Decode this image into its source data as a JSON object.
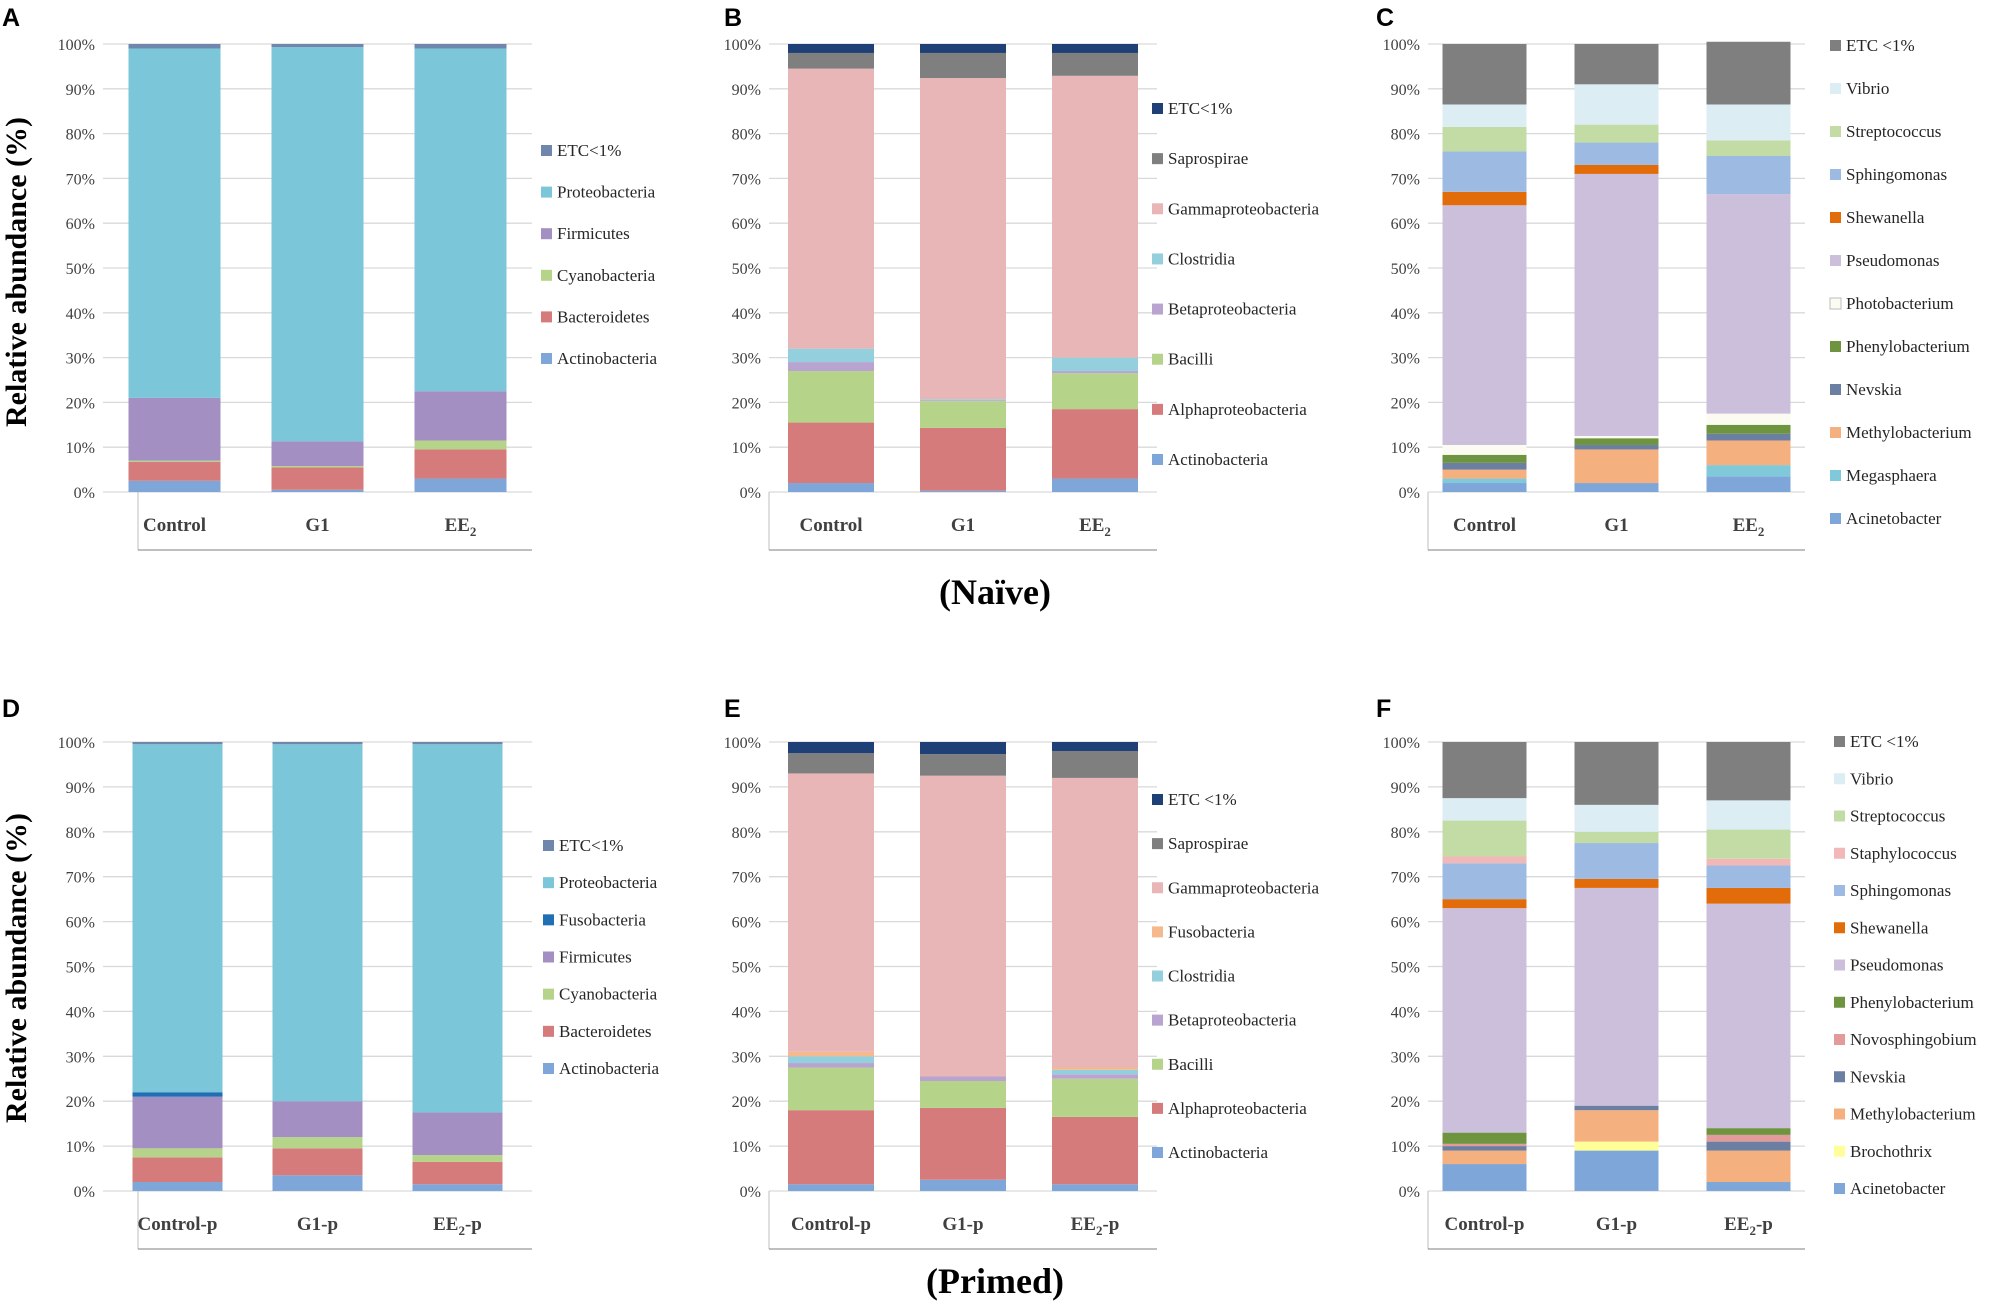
{
  "figure": {
    "ylabel": "Relative abundance (%)",
    "group_naive": "(Naïve)",
    "group_primed": "(Primed)",
    "yticks": [
      "0%",
      "10%",
      "20%",
      "30%",
      "40%",
      "50%",
      "60%",
      "70%",
      "80%",
      "90%",
      "100%"
    ]
  },
  "chart_data": [
    {
      "panel": "A",
      "type": "bar",
      "stacked": true,
      "title": "",
      "ylabel": "Relative abundance (%)",
      "ylim": [
        0,
        100
      ],
      "grid": true,
      "legend_position": "right",
      "categories": [
        "Control",
        "G1",
        "EE2"
      ],
      "category_labels": [
        [
          "Control"
        ],
        [
          "G1"
        ],
        [
          "EE",
          "2"
        ]
      ],
      "series": [
        {
          "name": "Actinobacteria",
          "color": "#7ea6d8",
          "values": [
            2.5,
            0.5,
            3.0
          ]
        },
        {
          "name": "Bacteroidetes",
          "color": "#d67b7b",
          "values": [
            4.2,
            5.0,
            6.5
          ]
        },
        {
          "name": "Cyanobacteria",
          "color": "#b5d48a",
          "values": [
            0.3,
            0.3,
            2.0
          ]
        },
        {
          "name": "Firmicutes",
          "color": "#a38fc2",
          "values": [
            14.0,
            5.5,
            11.0
          ]
        },
        {
          "name": "Proteobacteria",
          "color": "#7cc6d9",
          "values": [
            78.0,
            88.0,
            76.5
          ]
        },
        {
          "name": "ETC<1%",
          "color": "#6f87ac",
          "values": [
            1.0,
            0.7,
            1.0
          ]
        }
      ]
    },
    {
      "panel": "B",
      "type": "bar",
      "stacked": true,
      "title": "",
      "ylabel": "",
      "ylim": [
        0,
        100
      ],
      "grid": true,
      "legend_position": "right",
      "categories": [
        "Control",
        "G1",
        "EE2"
      ],
      "category_labels": [
        [
          "Control"
        ],
        [
          "G1"
        ],
        [
          "EE",
          "2"
        ]
      ],
      "series": [
        {
          "name": "Actinobacteria",
          "color": "#7ea6d8",
          "values": [
            2.0,
            0.3,
            3.0
          ]
        },
        {
          "name": "Alphaproteobacteria",
          "color": "#d67b7b",
          "values": [
            13.5,
            14.0,
            15.5
          ]
        },
        {
          "name": "Bacilli",
          "color": "#b5d48a",
          "values": [
            11.5,
            6.0,
            8.0
          ]
        },
        {
          "name": "Betaproteobacteria",
          "color": "#b9a4d1",
          "values": [
            2.0,
            0.2,
            0.5
          ]
        },
        {
          "name": "Clostridia",
          "color": "#93cfdc",
          "values": [
            3.0,
            0.2,
            3.0
          ]
        },
        {
          "name": "Gammaproteobacteria",
          "color": "#e8b6b6",
          "values": [
            62.5,
            71.7,
            62.9
          ]
        },
        {
          "name": "Saprospirae",
          "color": "#7f7f7f",
          "values": [
            3.5,
            5.6,
            5.1
          ]
        },
        {
          "name": "ETC<1%",
          "color": "#1f3f77",
          "values": [
            2.0,
            2.0,
            2.0
          ]
        }
      ]
    },
    {
      "panel": "C",
      "type": "bar",
      "stacked": true,
      "title": "",
      "ylabel": "",
      "ylim": [
        0,
        100
      ],
      "grid": true,
      "legend_position": "right",
      "categories": [
        "Control",
        "G1",
        "EE2"
      ],
      "category_labels": [
        [
          "Control"
        ],
        [
          "G1"
        ],
        [
          "EE",
          "2"
        ]
      ],
      "series": [
        {
          "name": "Acinetobacter",
          "color": "#7ea6d8",
          "values": [
            2.0,
            2.0,
            3.5
          ]
        },
        {
          "name": "Megasphaera",
          "color": "#7fc9da",
          "values": [
            1.0,
            0.0,
            2.5
          ]
        },
        {
          "name": "Methylobacterium",
          "color": "#f5b07f",
          "values": [
            2.0,
            7.5,
            5.5
          ]
        },
        {
          "name": "Nevskia",
          "color": "#6b7fa3",
          "values": [
            1.5,
            1.0,
            1.5
          ]
        },
        {
          "name": "Phenylobacterium",
          "color": "#6e9440",
          "values": [
            1.8,
            1.5,
            2.0
          ]
        },
        {
          "name": "Photobacterium",
          "color": "#fbfbf2",
          "values": [
            2.2,
            0.5,
            2.5
          ]
        },
        {
          "name": "Pseudomonas",
          "color": "#cbbfdc",
          "values": [
            53.5,
            58.5,
            49.0
          ]
        },
        {
          "name": "Shewanella",
          "color": "#e36c0a",
          "values": [
            3.0,
            2.0,
            0.0
          ]
        },
        {
          "name": "Sphingomonas",
          "color": "#9dbbe2",
          "values": [
            9.0,
            5.0,
            8.5
          ]
        },
        {
          "name": "Streptococcus",
          "color": "#c3dca5",
          "values": [
            5.5,
            4.0,
            3.5
          ]
        },
        {
          "name": "Vibrio",
          "color": "#dcedf3",
          "values": [
            5.0,
            9.0,
            8.0
          ]
        },
        {
          "name": "ETC <1%",
          "color": "#7f7f7f",
          "values": [
            13.5,
            9.0,
            14.0
          ]
        }
      ]
    },
    {
      "panel": "D",
      "type": "bar",
      "stacked": true,
      "title": "",
      "ylabel": "Relative abundance (%)",
      "ylim": [
        0,
        100
      ],
      "grid": true,
      "legend_position": "right",
      "categories": [
        "Control-p",
        "G1-p",
        "EE2-p"
      ],
      "category_labels": [
        [
          "Control-p"
        ],
        [
          "G1-p"
        ],
        [
          "EE",
          "2",
          "-p"
        ]
      ],
      "series": [
        {
          "name": "Actinobacteria",
          "color": "#7ea6d8",
          "values": [
            2.0,
            3.5,
            1.5
          ]
        },
        {
          "name": "Bacteroidetes",
          "color": "#d67b7b",
          "values": [
            5.5,
            6.0,
            5.0
          ]
        },
        {
          "name": "Cyanobacteria",
          "color": "#b5d48a",
          "values": [
            2.0,
            2.5,
            1.5
          ]
        },
        {
          "name": "Firmicutes",
          "color": "#a38fc2",
          "values": [
            11.5,
            8.0,
            9.5
          ]
        },
        {
          "name": "Fusobacteria",
          "color": "#1f6fb4",
          "values": [
            1.0,
            0.0,
            0.0
          ]
        },
        {
          "name": "Proteobacteria",
          "color": "#7cc6d9",
          "values": [
            77.5,
            79.5,
            82.0
          ]
        },
        {
          "name": "ETC<1%",
          "color": "#6f87ac",
          "values": [
            0.5,
            0.5,
            0.5
          ]
        }
      ]
    },
    {
      "panel": "E",
      "type": "bar",
      "stacked": true,
      "title": "",
      "ylabel": "",
      "ylim": [
        0,
        100
      ],
      "grid": true,
      "legend_position": "right",
      "categories": [
        "Control-p",
        "G1-p",
        "EE2-p"
      ],
      "category_labels": [
        [
          "Control-p"
        ],
        [
          "G1-p"
        ],
        [
          "EE",
          "2",
          "-p"
        ]
      ],
      "series": [
        {
          "name": "Actinobacteria",
          "color": "#7ea6d8",
          "values": [
            1.5,
            2.5,
            1.5
          ]
        },
        {
          "name": "Alphaproteobacteria",
          "color": "#d67b7b",
          "values": [
            16.5,
            16.0,
            15.0
          ]
        },
        {
          "name": "Bacilli",
          "color": "#b5d48a",
          "values": [
            9.5,
            6.0,
            8.5
          ]
        },
        {
          "name": "Betaproteobacteria",
          "color": "#b9a4d1",
          "values": [
            1.0,
            1.0,
            1.0
          ]
        },
        {
          "name": "Clostridia",
          "color": "#93cfdc",
          "values": [
            1.5,
            0.0,
            1.0
          ]
        },
        {
          "name": "Fusobacteria",
          "color": "#f6b98d",
          "values": [
            1.0,
            0.0,
            0.5
          ]
        },
        {
          "name": "Gammaproteobacteria",
          "color": "#e8b6b6",
          "values": [
            62.0,
            67.0,
            64.5
          ]
        },
        {
          "name": "Saprospirae",
          "color": "#7f7f7f",
          "values": [
            4.5,
            4.8,
            6.0
          ]
        },
        {
          "name": "ETC <1%",
          "color": "#1f3f77",
          "values": [
            2.5,
            2.7,
            2.0
          ]
        }
      ]
    },
    {
      "panel": "F",
      "type": "bar",
      "stacked": true,
      "title": "",
      "ylabel": "",
      "ylim": [
        0,
        100
      ],
      "grid": true,
      "legend_position": "right",
      "categories": [
        "Control-p",
        "G1-p",
        "EE2-p"
      ],
      "category_labels": [
        [
          "Control-p"
        ],
        [
          "G1-p"
        ],
        [
          "EE",
          "2",
          "-p"
        ]
      ],
      "series": [
        {
          "name": "Acinetobacter",
          "color": "#7ea6d8",
          "values": [
            6.0,
            9.0,
            2.0
          ]
        },
        {
          "name": "Brochothrix",
          "color": "#ffff99",
          "values": [
            0.0,
            2.0,
            0.0
          ]
        },
        {
          "name": "Methylobacterium",
          "color": "#f5b07f",
          "values": [
            3.0,
            7.0,
            7.0
          ]
        },
        {
          "name": "Nevskia",
          "color": "#6b7fa3",
          "values": [
            1.0,
            1.0,
            2.0
          ]
        },
        {
          "name": "Novosphingobium",
          "color": "#e39a9a",
          "values": [
            0.5,
            0.0,
            1.5
          ]
        },
        {
          "name": "Phenylobacterium",
          "color": "#6e9440",
          "values": [
            2.5,
            0.0,
            1.5
          ]
        },
        {
          "name": "Pseudomonas",
          "color": "#cbbfdc",
          "values": [
            50.0,
            48.5,
            50.0
          ]
        },
        {
          "name": "Shewanella",
          "color": "#e36c0a",
          "values": [
            2.0,
            2.0,
            3.5
          ]
        },
        {
          "name": "Sphingomonas",
          "color": "#9dbbe2",
          "values": [
            8.0,
            8.0,
            5.0
          ]
        },
        {
          "name": "Staphylococcus",
          "color": "#f2b8b8",
          "values": [
            1.5,
            0.0,
            1.5
          ]
        },
        {
          "name": "Streptococcus",
          "color": "#c3dca5",
          "values": [
            8.0,
            2.5,
            6.5
          ]
        },
        {
          "name": "Vibrio",
          "color": "#dcedf3",
          "values": [
            5.0,
            6.0,
            6.5
          ]
        },
        {
          "name": "ETC <1%",
          "color": "#7f7f7f",
          "values": [
            12.5,
            14.0,
            13.0
          ]
        }
      ]
    }
  ]
}
